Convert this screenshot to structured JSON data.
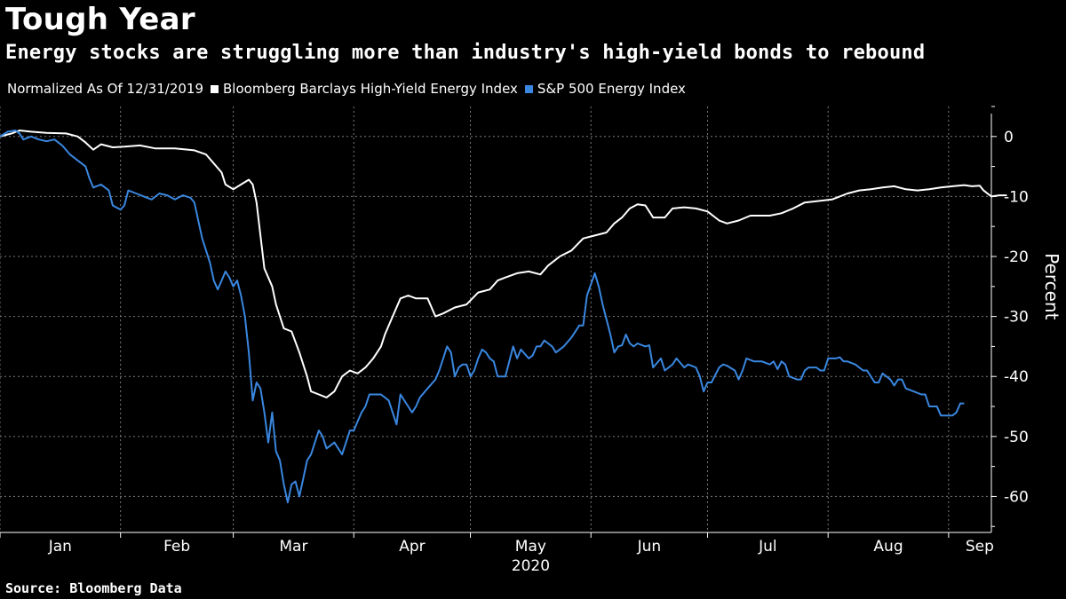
{
  "title": "Tough Year",
  "subtitle": "Energy stocks are struggling more than industry's high-yield bonds to rebound",
  "source": "Source: Bloomberg Data",
  "chart_data": {
    "type": "line",
    "legend_note": "Normalized As Of 12/31/2019",
    "ylabel": "Percent",
    "year_label": "2020",
    "ylim": [
      -66,
      5
    ],
    "xlim": [
      0,
      255
    ],
    "yticks": [
      0,
      -10,
      -20,
      -30,
      -40,
      -50,
      -60
    ],
    "ytick_labels": [
      "0",
      "-10",
      "-20",
      "-30",
      "-40",
      "-50",
      "-60"
    ],
    "month_ticks": [
      0,
      31,
      60,
      91,
      121,
      152,
      182,
      213,
      244
    ],
    "months": [
      {
        "label": "Jan",
        "at": 15.5
      },
      {
        "label": "Feb",
        "at": 45.5
      },
      {
        "label": "Mar",
        "at": 75.5
      },
      {
        "label": "Apr",
        "at": 106
      },
      {
        "label": "May",
        "at": 136.5
      },
      {
        "label": "Jun",
        "at": 167
      },
      {
        "label": "Jul",
        "at": 197.5
      },
      {
        "label": "Aug",
        "at": 228.5
      },
      {
        "label": "Sep",
        "at": 252
      }
    ],
    "grid": true,
    "legend_position": "top-left",
    "series": [
      {
        "name": "Bloomberg Barclays High-Yield Energy Index",
        "color": "#ffffff",
        "points": [
          [
            0,
            0
          ],
          [
            3,
            0.5
          ],
          [
            5,
            1
          ],
          [
            8,
            0.8
          ],
          [
            12,
            0.6
          ],
          [
            17,
            0.5
          ],
          [
            20,
            0
          ],
          [
            22,
            -1
          ],
          [
            24,
            -2.2
          ],
          [
            26,
            -1.3
          ],
          [
            29,
            -1.8
          ],
          [
            32,
            -1.7
          ],
          [
            36,
            -1.5
          ],
          [
            40,
            -2
          ],
          [
            45,
            -2
          ],
          [
            50,
            -2.3
          ],
          [
            53,
            -3
          ],
          [
            55,
            -4.5
          ],
          [
            57,
            -6
          ],
          [
            58,
            -8
          ],
          [
            60,
            -8.8
          ],
          [
            62,
            -8
          ],
          [
            64,
            -7.2
          ],
          [
            65,
            -8
          ],
          [
            66,
            -11
          ],
          [
            68,
            -22
          ],
          [
            70,
            -25
          ],
          [
            71,
            -28
          ],
          [
            73,
            -32
          ],
          [
            75,
            -32.5
          ],
          [
            77,
            -36
          ],
          [
            79,
            -40
          ],
          [
            80,
            -42.5
          ],
          [
            82,
            -43
          ],
          [
            84,
            -43.5
          ],
          [
            86,
            -42.5
          ],
          [
            88,
            -40
          ],
          [
            90,
            -39
          ],
          [
            92,
            -39.5
          ],
          [
            94,
            -38.5
          ],
          [
            96,
            -37
          ],
          [
            98,
            -35
          ],
          [
            99,
            -33
          ],
          [
            101,
            -30
          ],
          [
            103,
            -27
          ],
          [
            105,
            -26.5
          ],
          [
            107,
            -27
          ],
          [
            110,
            -27
          ],
          [
            112,
            -30
          ],
          [
            114,
            -29.5
          ],
          [
            117,
            -28.5
          ],
          [
            120,
            -28
          ],
          [
            123,
            -26
          ],
          [
            126,
            -25.5
          ],
          [
            128,
            -24
          ],
          [
            130,
            -23.5
          ],
          [
            133,
            -22.8
          ],
          [
            136,
            -22.5
          ],
          [
            139,
            -23
          ],
          [
            141,
            -21.5
          ],
          [
            144,
            -20
          ],
          [
            147,
            -19
          ],
          [
            150,
            -17
          ],
          [
            153,
            -16.5
          ],
          [
            156,
            -16
          ],
          [
            158,
            -14.5
          ],
          [
            160,
            -13.5
          ],
          [
            162,
            -12
          ],
          [
            164,
            -11.3
          ],
          [
            166,
            -11.5
          ],
          [
            168,
            -13.5
          ],
          [
            171,
            -13.5
          ],
          [
            173,
            -12
          ],
          [
            176,
            -11.8
          ],
          [
            179,
            -12
          ],
          [
            182,
            -12.5
          ],
          [
            185,
            -14
          ],
          [
            187,
            -14.5
          ],
          [
            190,
            -14
          ],
          [
            193,
            -13.2
          ],
          [
            198,
            -13.2
          ],
          [
            201,
            -12.8
          ],
          [
            204,
            -12
          ],
          [
            207,
            -11
          ],
          [
            210,
            -10.8
          ],
          [
            214,
            -10.5
          ],
          [
            218,
            -9.5
          ],
          [
            221,
            -9
          ],
          [
            224,
            -8.8
          ],
          [
            227,
            -8.5
          ],
          [
            230,
            -8.3
          ],
          [
            233,
            -8.8
          ],
          [
            236,
            -9
          ],
          [
            239,
            -8.8
          ],
          [
            242,
            -8.5
          ],
          [
            245,
            -8.3
          ],
          [
            248,
            -8.1
          ],
          [
            250,
            -8.3
          ],
          [
            252,
            -8.2
          ],
          [
            253,
            -9
          ],
          [
            255,
            -10
          ],
          [
            257,
            -9.8
          ],
          [
            259,
            -9.8
          ]
        ]
      },
      {
        "name": "S&P 500 Energy Index",
        "color": "#3a87e0",
        "points": [
          [
            0,
            0
          ],
          [
            2,
            0.8
          ],
          [
            4,
            1
          ],
          [
            5,
            0.5
          ],
          [
            6,
            -0.5
          ],
          [
            8,
            0
          ],
          [
            10,
            -0.5
          ],
          [
            12,
            -0.8
          ],
          [
            14,
            -0.5
          ],
          [
            16,
            -1.5
          ],
          [
            18,
            -3
          ],
          [
            20,
            -4
          ],
          [
            22,
            -5
          ],
          [
            23,
            -7
          ],
          [
            24,
            -8.5
          ],
          [
            26,
            -8
          ],
          [
            28,
            -9
          ],
          [
            29,
            -11.5
          ],
          [
            31,
            -12.2
          ],
          [
            32,
            -11.5
          ],
          [
            33,
            -9
          ],
          [
            35,
            -9.5
          ],
          [
            37,
            -10
          ],
          [
            39,
            -10.5
          ],
          [
            41,
            -9.5
          ],
          [
            43,
            -9.8
          ],
          [
            45,
            -10.5
          ],
          [
            47,
            -9.8
          ],
          [
            49,
            -10.2
          ],
          [
            50,
            -11
          ],
          [
            51,
            -14
          ],
          [
            52,
            -17
          ],
          [
            54,
            -21
          ],
          [
            55,
            -24
          ],
          [
            56,
            -25.5
          ],
          [
            57,
            -24
          ],
          [
            58,
            -22.5
          ],
          [
            59,
            -23.5
          ],
          [
            60,
            -25
          ],
          [
            61,
            -24
          ],
          [
            62,
            -26.5
          ],
          [
            63,
            -30
          ],
          [
            64,
            -36
          ],
          [
            65,
            -44
          ],
          [
            66,
            -41
          ],
          [
            67,
            -42
          ],
          [
            68,
            -46
          ],
          [
            69,
            -51
          ],
          [
            70,
            -46
          ],
          [
            71,
            -52.5
          ],
          [
            72,
            -54
          ],
          [
            73,
            -58
          ],
          [
            74,
            -61
          ],
          [
            75,
            -58
          ],
          [
            76,
            -57.5
          ],
          [
            77,
            -60
          ],
          [
            78,
            -57
          ],
          [
            79,
            -54
          ],
          [
            80,
            -53
          ],
          [
            81,
            -51
          ],
          [
            82,
            -49
          ],
          [
            83,
            -50
          ],
          [
            84,
            -52
          ],
          [
            86,
            -51
          ],
          [
            88,
            -53
          ],
          [
            89,
            -51
          ],
          [
            90,
            -49
          ],
          [
            91,
            -49
          ],
          [
            92,
            -47.5
          ],
          [
            93,
            -46
          ],
          [
            94,
            -45
          ],
          [
            95,
            -43
          ],
          [
            98,
            -43
          ],
          [
            100,
            -44
          ],
          [
            101,
            -46
          ],
          [
            102,
            -48
          ],
          [
            103,
            -43
          ],
          [
            105,
            -45
          ],
          [
            106,
            -46
          ],
          [
            107,
            -45
          ],
          [
            108,
            -43.5
          ],
          [
            110,
            -42
          ],
          [
            112,
            -40.5
          ],
          [
            113,
            -39
          ],
          [
            115,
            -35
          ],
          [
            116,
            -36
          ],
          [
            117,
            -40
          ],
          [
            118,
            -38.5
          ],
          [
            119,
            -38
          ],
          [
            120,
            -38
          ],
          [
            121,
            -40
          ],
          [
            122,
            -39
          ],
          [
            123,
            -37
          ],
          [
            124,
            -35.5
          ],
          [
            125,
            -36
          ],
          [
            126,
            -37
          ],
          [
            127,
            -37.5
          ],
          [
            128,
            -40
          ],
          [
            129,
            -40
          ],
          [
            130,
            -40
          ],
          [
            132,
            -35
          ],
          [
            133,
            -37
          ],
          [
            134,
            -35.5
          ],
          [
            136,
            -37
          ],
          [
            137,
            -36.5
          ],
          [
            138,
            -35
          ],
          [
            139,
            -35
          ],
          [
            140,
            -34
          ],
          [
            141,
            -34.5
          ],
          [
            142,
            -35
          ],
          [
            143,
            -36
          ],
          [
            145,
            -35
          ],
          [
            147,
            -33.5
          ],
          [
            149,
            -31.5
          ],
          [
            150,
            -31.5
          ],
          [
            151,
            -26.5
          ],
          [
            153,
            -22.8
          ],
          [
            154,
            -25
          ],
          [
            155,
            -28
          ],
          [
            157,
            -33
          ],
          [
            158,
            -36
          ],
          [
            159,
            -35
          ],
          [
            160,
            -34.8
          ],
          [
            161,
            -33
          ],
          [
            162,
            -34.5
          ],
          [
            163,
            -35
          ],
          [
            164,
            -34.5
          ],
          [
            166,
            -35
          ],
          [
            167,
            -34.8
          ],
          [
            168,
            -38.5
          ],
          [
            170,
            -37
          ],
          [
            171,
            -39
          ],
          [
            173,
            -38
          ],
          [
            174,
            -37
          ],
          [
            176,
            -38.5
          ],
          [
            177,
            -38
          ],
          [
            179,
            -38.5
          ],
          [
            180,
            -40
          ],
          [
            181,
            -42.5
          ],
          [
            182,
            -41
          ],
          [
            183,
            -41
          ],
          [
            185,
            -38.5
          ],
          [
            186,
            -38
          ],
          [
            187,
            -38.2
          ],
          [
            189,
            -39
          ],
          [
            190,
            -40.5
          ],
          [
            191,
            -39
          ],
          [
            192,
            -37
          ],
          [
            194,
            -37.5
          ],
          [
            196,
            -37.5
          ],
          [
            198,
            -38
          ],
          [
            199,
            -37.5
          ],
          [
            200,
            -38.8
          ],
          [
            201,
            -37.5
          ],
          [
            202,
            -38
          ],
          [
            203,
            -40
          ],
          [
            205,
            -40.5
          ],
          [
            206,
            -40.5
          ],
          [
            207,
            -39
          ],
          [
            208,
            -38.5
          ],
          [
            210,
            -38.5
          ],
          [
            211,
            -39
          ],
          [
            212,
            -39
          ],
          [
            213,
            -37
          ],
          [
            215,
            -37
          ],
          [
            216,
            -36.8
          ],
          [
            217,
            -37.5
          ],
          [
            218,
            -37.5
          ],
          [
            220,
            -38
          ],
          [
            222,
            -39
          ],
          [
            223,
            -39
          ],
          [
            225,
            -41
          ],
          [
            226,
            -41
          ],
          [
            227,
            -39.5
          ],
          [
            229,
            -40.5
          ],
          [
            230,
            -41.5
          ],
          [
            231,
            -40.5
          ],
          [
            232,
            -40.5
          ],
          [
            233,
            -42
          ],
          [
            235,
            -42.5
          ],
          [
            237,
            -43
          ],
          [
            238,
            -43
          ],
          [
            239,
            -45
          ],
          [
            240,
            -45
          ],
          [
            241,
            -45
          ],
          [
            242,
            -46.5
          ],
          [
            244,
            -46.5
          ],
          [
            245,
            -46.5
          ],
          [
            246,
            -46
          ],
          [
            247,
            -44.5
          ],
          [
            248,
            -44.5
          ]
        ]
      }
    ]
  }
}
